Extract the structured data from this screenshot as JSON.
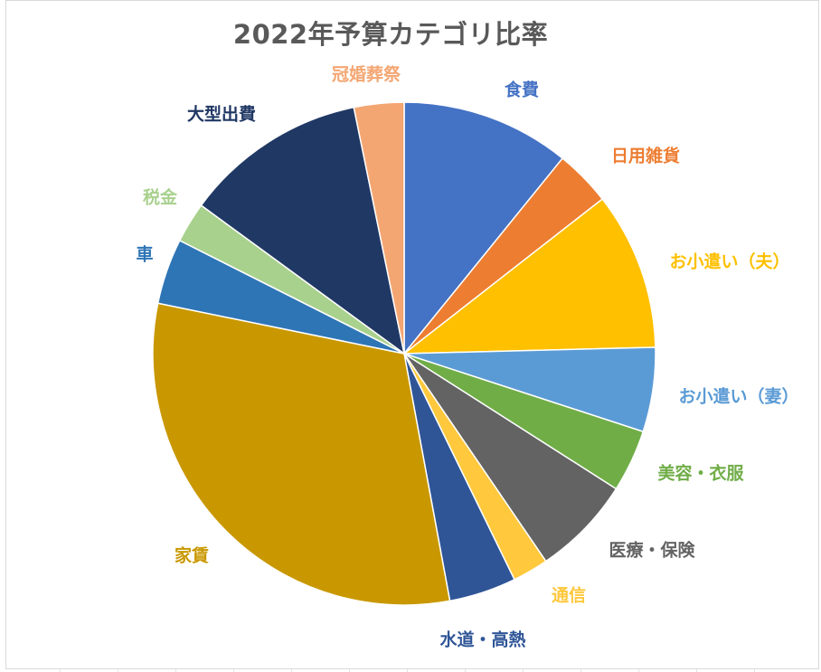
{
  "chart_data": {
    "type": "pie",
    "title": "2022年予算カテゴリ比率",
    "slices": [
      {
        "label": "食費",
        "value": 10.8,
        "color": "#4472C4"
      },
      {
        "label": "日用雑貨",
        "value": 3.6,
        "color": "#ED7D31"
      },
      {
        "label": "お小遣い（夫）",
        "value": 10.1,
        "color": "#FFC000"
      },
      {
        "label": "お小遣い（妻）",
        "value": 5.4,
        "color": "#5B9BD5"
      },
      {
        "label": "美容・衣服",
        "value": 4.0,
        "color": "#70AD47"
      },
      {
        "label": "医療・保険",
        "value": 6.4,
        "color": "#636363"
      },
      {
        "label": "通信",
        "value": 2.3,
        "color": "#FFC83D"
      },
      {
        "label": "水道・高熱",
        "value": 4.3,
        "color": "#2F5597"
      },
      {
        "label": "家賃",
        "value": 31.0,
        "color": "#C99800"
      },
      {
        "label": "車",
        "value": 4.2,
        "color": "#2E75B6"
      },
      {
        "label": "税金",
        "value": 2.6,
        "color": "#A9D18E"
      },
      {
        "label": "大型出費",
        "value": 11.7,
        "color": "#203864"
      },
      {
        "label": "冠婚葬祭",
        "value": 3.2,
        "color": "#F4A672"
      }
    ],
    "legend": "none",
    "data_labels": "category-name"
  }
}
